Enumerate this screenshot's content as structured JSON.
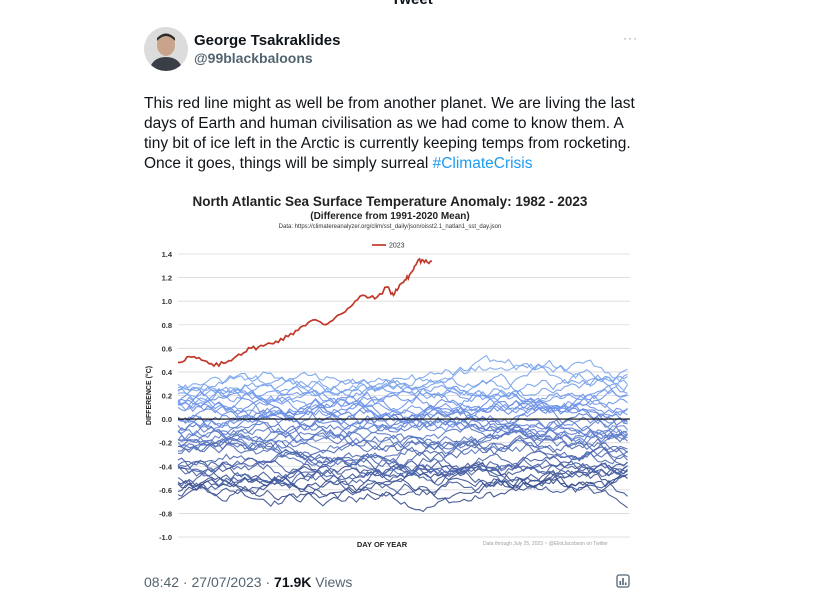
{
  "page": {
    "title": "Tweet"
  },
  "author": {
    "name": "George Tsakraklides",
    "handle": "@99blackbaloons"
  },
  "tweet": {
    "text": "This red line might as well be from another planet. We are living the last days of Earth and human civilisation as we had come to know them. A tiny bit of ice left in the Arctic is currently keeping temps from rocketing. Once it goes, things will be simply surreal ",
    "hashtag": "#ClimateCrisis"
  },
  "meta": {
    "time": "08:42",
    "separator": " · ",
    "date": "27/07/2023",
    "views_count": "71.9K",
    "views_label": " Views"
  },
  "icons": {
    "more": "more-icon",
    "analytics": "analytics-icon"
  },
  "chart_data": {
    "type": "line",
    "title": "North Atlantic Sea Surface Temperature Anomaly: 1982 - 2023",
    "subtitle": "(Difference from 1991-2020 Mean)",
    "source": "Data: https://climatereanalyzer.org/clim/sst_daily/json/oisst2.1_natlan1_sst_day.json",
    "credit": "Data through July 25, 2023 ~ @EliotJacobson on Twitter",
    "xlabel": "DAY OF YEAR",
    "ylabel": "DIFFERENCE (°C)",
    "ylim": [
      -1.0,
      1.4
    ],
    "yticks": [
      "-1.0",
      "-0.8",
      "-0.6",
      "-0.4",
      "-0.2",
      "0.0",
      "0.2",
      "0.4",
      "0.6",
      "0.8",
      "1.0",
      "1.2",
      "1.4"
    ],
    "xlim": [
      1,
      366
    ],
    "grid": true,
    "legend": {
      "position": "top",
      "entries": [
        "2023"
      ]
    },
    "colors": {
      "highlight": "#c0392b",
      "zero_line": "#000000",
      "grid": "#d9d9d9"
    },
    "highlight_series": {
      "name": "2023",
      "x": [
        1,
        10,
        20,
        30,
        40,
        50,
        60,
        70,
        80,
        90,
        100,
        110,
        120,
        130,
        140,
        150,
        160,
        170,
        175,
        180,
        185,
        190,
        195,
        200,
        206
      ],
      "y": [
        0.48,
        0.53,
        0.5,
        0.45,
        0.48,
        0.55,
        0.6,
        0.62,
        0.66,
        0.7,
        0.78,
        0.84,
        0.8,
        0.88,
        0.95,
        1.05,
        1.02,
        1.12,
        1.05,
        1.14,
        1.18,
        1.25,
        1.35,
        1.33,
        1.34
      ]
    },
    "background_series_note_count": 41
  }
}
